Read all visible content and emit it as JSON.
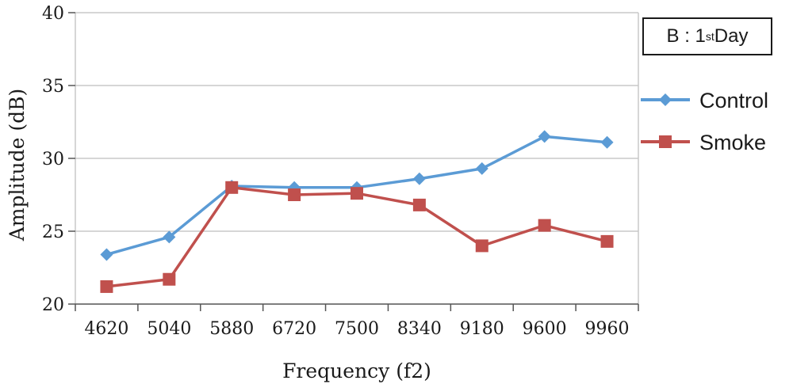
{
  "chart_data": {
    "type": "line",
    "xlabel": "Frequency (f2)",
    "ylabel": "Amplitude (dB)",
    "categories": [
      "4620",
      "5040",
      "5880",
      "6720",
      "7500",
      "8340",
      "9180",
      "9600",
      "9960"
    ],
    "ylim": [
      20,
      40
    ],
    "yticks": [
      20,
      25,
      30,
      35,
      40
    ],
    "grid": true,
    "legend_position": "right",
    "annotation": {
      "prefix": "B : 1",
      "superscript": "st",
      "suffix": " Day"
    },
    "series": [
      {
        "name": "Control",
        "color": "#5b9bd5",
        "marker": "diamond",
        "values": [
          23.4,
          24.6,
          28.1,
          28.0,
          28.0,
          28.6,
          29.3,
          31.5,
          31.1
        ]
      },
      {
        "name": "Smoke",
        "color": "#c0504d",
        "marker": "square",
        "values": [
          21.2,
          21.7,
          28.0,
          27.5,
          27.6,
          26.8,
          24.0,
          25.4,
          24.3
        ]
      }
    ]
  }
}
